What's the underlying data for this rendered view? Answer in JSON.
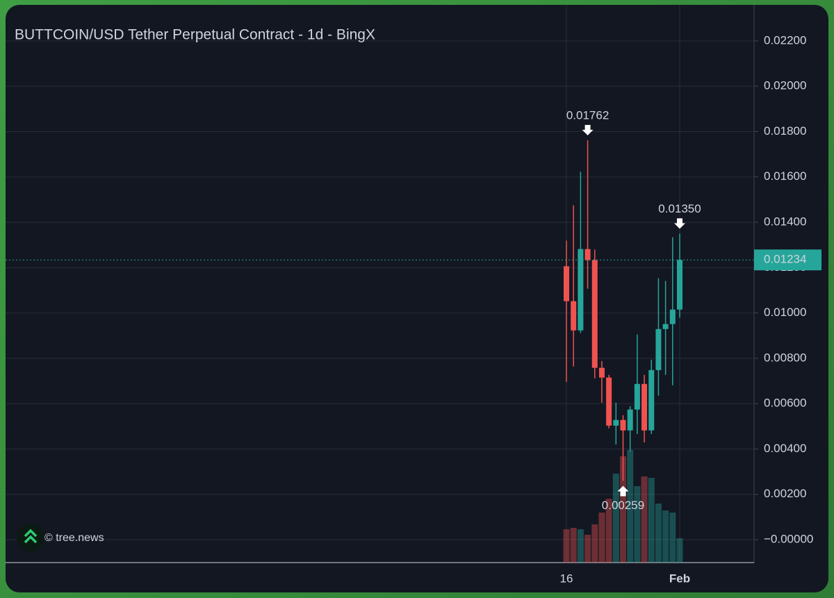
{
  "chart_data": {
    "type": "candlestick",
    "title": "BUTTCOIN/USD Tether Perpetual Contract - 1d - BingX",
    "watermark": "© tree.news",
    "categories": [
      "16",
      null,
      null,
      null,
      null,
      null,
      null,
      null,
      null,
      null,
      null,
      null,
      null,
      null,
      null,
      null,
      "Feb"
    ],
    "open": [
      0.01206,
      0.01052,
      0.00923,
      0.01282,
      0.01233,
      0.00758,
      0.00715,
      0.00503,
      0.00528,
      0.00482,
      0.00574,
      0.00687,
      0.00482,
      0.00748,
      0.00929,
      0.00951,
      0.01015
    ],
    "high": [
      0.01319,
      0.01475,
      0.01623,
      0.01762,
      0.01279,
      0.00788,
      0.00727,
      0.00604,
      0.00549,
      0.00589,
      0.00905,
      0.00727,
      0.00794,
      0.01153,
      0.01141,
      0.01334,
      0.0135
    ],
    "low": [
      0.00696,
      0.00764,
      0.00911,
      0.01107,
      0.00712,
      0.00604,
      0.00491,
      0.0042,
      0.00259,
      0.0039,
      0.00466,
      0.00429,
      0.00466,
      0.00635,
      0.00727,
      0.00681,
      0.00979
    ],
    "close": [
      0.01052,
      0.00923,
      0.01282,
      0.01233,
      0.00758,
      0.00715,
      0.00503,
      0.00528,
      0.00482,
      0.00574,
      0.00687,
      0.00482,
      0.00748,
      0.00929,
      0.00951,
      0.01015,
      0.01234
    ],
    "volume": [
      48,
      50,
      48,
      40,
      55,
      72,
      92,
      128,
      153,
      162,
      110,
      124,
      122,
      85,
      75,
      72,
      35
    ],
    "up_color": "#26a69a",
    "down_color": "#ef5350",
    "ylim": [
      -0.00101,
      0.02359
    ],
    "yticks": [
      {
        "value": 0,
        "label": "−0.00000"
      },
      {
        "value": 0.002,
        "label": "0.00200"
      },
      {
        "value": 0.004,
        "label": "0.00400"
      },
      {
        "value": 0.006,
        "label": "0.00600"
      },
      {
        "value": 0.008,
        "label": "0.00800"
      },
      {
        "value": 0.01,
        "label": "0.01000"
      },
      {
        "value": 0.012,
        "label": "0.01200"
      },
      {
        "value": 0.014,
        "label": "0.01400"
      },
      {
        "value": 0.016,
        "label": "0.01600"
      },
      {
        "value": 0.018,
        "label": "0.01800"
      },
      {
        "value": 0.02,
        "label": "0.02000"
      },
      {
        "value": 0.022,
        "label": "0.02200"
      }
    ],
    "grid": true,
    "last_price": {
      "value": 0.01234,
      "label": "0.01234"
    },
    "annotations": [
      {
        "text": "0.01762",
        "candle": 3,
        "at": "high"
      },
      {
        "text": "0.01350",
        "candle": 16,
        "at": "high"
      },
      {
        "text": "0.00259",
        "candle": 8,
        "at": "low"
      }
    ]
  }
}
